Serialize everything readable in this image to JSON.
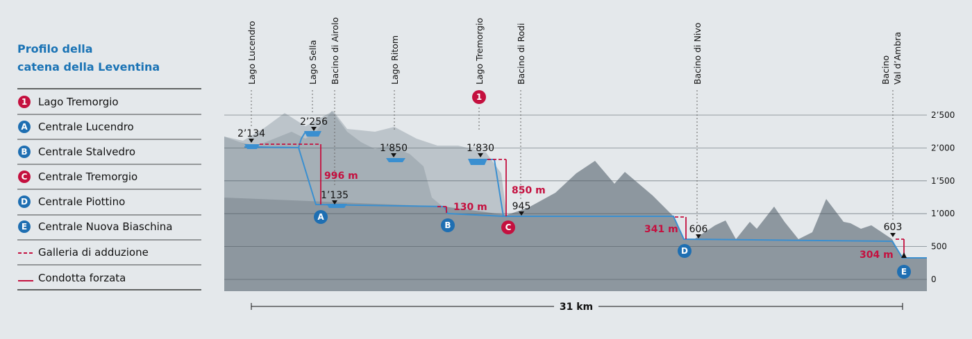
{
  "title": [
    "Profilo della",
    "catena della Leventina"
  ],
  "legend": [
    {
      "marker": "1",
      "label": "Lago Tremorgio"
    },
    {
      "marker": "A",
      "label": "Centrale Lucendro"
    },
    {
      "marker": "B",
      "label": "Centrale Stalvedro"
    },
    {
      "marker": "C",
      "label": "Centrale Tremorgio"
    },
    {
      "marker": "D",
      "label": "Centrale Piottino"
    },
    {
      "marker": "E",
      "label": "Centrale Nuova Biaschina"
    },
    {
      "label": "Galleria di adduzione"
    },
    {
      "label": "Condotta forzata"
    }
  ],
  "stations": [
    "Lago Lucendro",
    "Lago Sella",
    "Bacino di Airolo",
    "Lago Ritom",
    "Lago Tremorgio",
    "Bacino di Rodi",
    "Bacino di Nivo",
    [
      "Bacino",
      "Val d’Ambra"
    ]
  ],
  "elevations": [
    "2’134",
    "2’256",
    "1’850",
    "1’830",
    "1’135",
    "945",
    "606",
    "603"
  ],
  "heads": [
    "996 m",
    "130 m",
    "850 m",
    "341 m",
    "304 m"
  ],
  "distance": "31 km",
  "y_axis": {
    "ylim": [
      0,
      2500
    ],
    "ticks": [
      {
        "value": 0,
        "label": "0"
      },
      {
        "value": 500,
        "label": "500"
      },
      {
        "value": 1000,
        "label": "1’000"
      },
      {
        "value": 1500,
        "label": "1’500"
      },
      {
        "value": 2000,
        "label": "2’000"
      },
      {
        "value": 2500,
        "label": "2’500"
      }
    ]
  }
}
